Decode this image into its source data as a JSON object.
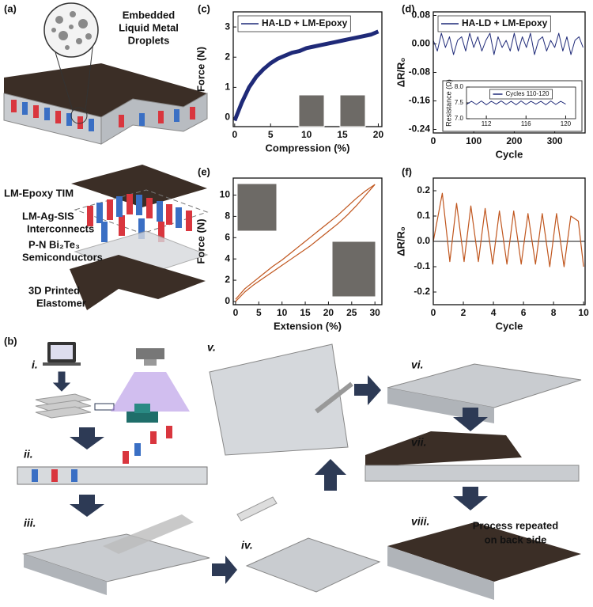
{
  "figure": {
    "panel_labels": [
      "(a)",
      "(b)",
      "(c)",
      "(d)",
      "(e)",
      "(f)"
    ],
    "droplet_label": [
      "Embedded",
      "Liquid Metal",
      "Droplets"
    ],
    "layer_labels": [
      "LM-Epoxy TIM",
      "LM-Ag-SIS",
      "Interconnects",
      "P-N Bi₂Te₃",
      "Semiconductors",
      "3D Printed",
      "Elastomer"
    ],
    "steps": [
      "i.",
      "ii.",
      "iii.",
      "iv.",
      "v.",
      "vi.",
      "vii.",
      "viii."
    ],
    "note": [
      "Process repeated",
      "on back side"
    ]
  },
  "chart_data": [
    {
      "type": "line",
      "xlabel": "Compression (%)",
      "ylabel": "Force (N)",
      "xlim": [
        -0.2,
        20.5
      ],
      "ylim": [
        -0.3,
        3.5
      ],
      "xticks": [
        0,
        5,
        10,
        15,
        20
      ],
      "yticks": [
        0,
        1,
        2,
        3
      ],
      "legend": "upper left",
      "x": [
        0,
        1,
        2,
        3,
        4,
        5,
        6,
        7,
        8,
        9,
        10,
        11,
        12,
        13,
        14,
        15,
        16,
        17,
        18,
        19,
        20
      ],
      "series": [
        {
          "name": "HA-LD + LM-Epoxy",
          "color": "#1f2a78",
          "values": [
            -0.1,
            0.5,
            1.0,
            1.35,
            1.6,
            1.8,
            1.95,
            2.05,
            2.15,
            2.2,
            2.3,
            2.35,
            2.4,
            2.45,
            2.5,
            2.55,
            2.6,
            2.65,
            2.7,
            2.75,
            2.85
          ]
        }
      ]
    },
    {
      "type": "line",
      "xlabel": "Cycle",
      "ylabel": "ΔR/R₀",
      "xlim": [
        0,
        375
      ],
      "ylim": [
        -0.25,
        0.09
      ],
      "xticks": [
        0,
        100,
        200,
        300
      ],
      "yticks": [
        0.08,
        {
          "value": 0,
          "label": "0.00"
        },
        -0.08,
        -0.16,
        -0.24
      ],
      "legend": "upper left",
      "x": [
        0,
        10,
        20,
        30,
        40,
        50,
        60,
        70,
        80,
        90,
        100,
        110,
        120,
        130,
        140,
        150,
        160,
        170,
        180,
        190,
        200,
        210,
        220,
        230,
        240,
        250,
        260,
        270,
        280,
        290,
        300,
        310,
        320,
        330,
        340,
        350,
        360,
        370
      ],
      "series": [
        {
          "name": "HA-LD + LM-Epoxy",
          "color": "#1f2a78",
          "values": [
            0.01,
            -0.02,
            0.03,
            -0.01,
            0.02,
            -0.03,
            0.01,
            0.02,
            -0.02,
            0.03,
            -0.01,
            0.02,
            -0.02,
            0.01,
            0.03,
            -0.03,
            0.02,
            -0.01,
            0.01,
            -0.02,
            0.03,
            -0.02,
            0.02,
            -0.01,
            0.03,
            -0.03,
            0.01,
            0.02,
            -0.02,
            0.01,
            -0.01,
            0.03,
            -0.02,
            0.02,
            -0.03,
            0.01,
            0.02,
            -0.01
          ]
        }
      ]
    },
    {
      "type": "line",
      "ylabel": "Resistance (Ω)",
      "xlim": [
        110,
        121
      ],
      "ylim": [
        7.0,
        8.0
      ],
      "xticks": [
        112,
        116,
        120
      ],
      "yticks": [
        {
          "value": 7,
          "label": "7.0"
        },
        7.5,
        {
          "value": 8,
          "label": "8.0"
        }
      ],
      "legend": "upper center",
      "x": [
        110,
        110.5,
        111,
        111.5,
        112,
        112.5,
        113,
        113.5,
        114,
        114.5,
        115,
        115.5,
        116,
        116.5,
        117,
        117.5,
        118,
        118.5,
        119,
        119.5,
        120
      ],
      "series": [
        {
          "name": "Cycles 110-120",
          "color": "#1f2a78",
          "values": [
            7.45,
            7.55,
            7.45,
            7.56,
            7.44,
            7.55,
            7.46,
            7.56,
            7.45,
            7.55,
            7.44,
            7.56,
            7.45,
            7.55,
            7.46,
            7.55,
            7.44,
            7.56,
            7.45,
            7.55,
            7.46
          ]
        }
      ]
    },
    {
      "type": "line",
      "xlabel": "Extension (%)",
      "ylabel": "Force (N)",
      "xlim": [
        -0.5,
        31.5
      ],
      "ylim": [
        -0.3,
        11.6
      ],
      "xticks": [
        0,
        5,
        10,
        15,
        20,
        25,
        30
      ],
      "yticks": [
        0,
        2,
        4,
        6,
        8,
        10
      ],
      "x": [
        0,
        2,
        4,
        6,
        8,
        10,
        12,
        14,
        16,
        18,
        20,
        22,
        24,
        26,
        28,
        30
      ],
      "series": [
        {
          "color": "#c0561e",
          "values": [
            0,
            0.9,
            1.6,
            2.2,
            2.8,
            3.4,
            4.0,
            4.6,
            5.2,
            5.9,
            6.6,
            7.3,
            8.1,
            9.0,
            10.0,
            11.0
          ]
        },
        {
          "color": "#c0561e",
          "values": [
            0.2,
            1.2,
            1.9,
            2.6,
            3.3,
            3.9,
            4.6,
            5.3,
            6.0,
            6.7,
            7.4,
            8.1,
            8.9,
            9.7,
            10.4,
            11.0
          ]
        }
      ]
    },
    {
      "type": "line",
      "xlabel": "Cycle",
      "ylabel": "ΔR/R₀",
      "xlim": [
        0,
        10.1
      ],
      "ylim": [
        -0.25,
        0.25
      ],
      "xticks": [
        0,
        2,
        4,
        6,
        8,
        10
      ],
      "yticks": [
        -0.2,
        -0.1,
        {
          "value": 0,
          "label": "0.0"
        },
        0.1,
        0.2
      ],
      "zero_line": true,
      "x": [
        0,
        0.6,
        1.1,
        1.55,
        2.05,
        2.5,
        3.0,
        3.45,
        3.95,
        4.4,
        4.9,
        5.35,
        5.85,
        6.3,
        6.8,
        7.25,
        7.75,
        8.2,
        8.7,
        9.15,
        9.65,
        10
      ],
      "series": [
        {
          "color": "#c0561e",
          "values": [
            0,
            0.19,
            -0.08,
            0.15,
            -0.08,
            0.14,
            -0.08,
            0.13,
            -0.09,
            0.12,
            -0.09,
            0.12,
            -0.09,
            0.11,
            -0.09,
            0.11,
            -0.1,
            0.11,
            -0.1,
            0.1,
            0.08,
            -0.1
          ]
        }
      ]
    }
  ]
}
